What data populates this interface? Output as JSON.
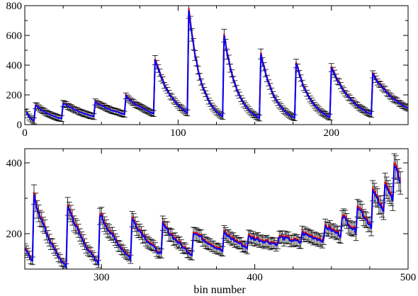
{
  "chart_data": [
    {
      "type": "line",
      "xlabel": "",
      "ylabel": "",
      "xlim": [
        0,
        250
      ],
      "ylim": [
        0,
        800
      ],
      "xticks": [
        0,
        100,
        200
      ],
      "yticks": [
        0,
        200,
        400,
        600,
        800
      ],
      "grid": false,
      "legend": "none",
      "series_colors": {
        "data": "#000000",
        "model_red": "#e00000",
        "model_blue": "#0000ff"
      },
      "cycles": [
        {
          "x0": 1,
          "x1": 6,
          "peak": 85,
          "end": 25
        },
        {
          "x0": 7,
          "x1": 24,
          "peak": 130,
          "end": 40
        },
        {
          "x0": 25,
          "x1": 45,
          "peak": 145,
          "end": 55
        },
        {
          "x0": 46,
          "x1": 65,
          "peak": 150,
          "end": 70
        },
        {
          "x0": 66,
          "x1": 84,
          "peak": 190,
          "end": 75
        },
        {
          "x0": 85,
          "x1": 106,
          "peak": 440,
          "end": 80
        },
        {
          "x0": 107,
          "x1": 129,
          "peak": 760,
          "end": 55
        },
        {
          "x0": 130,
          "x1": 153,
          "peak": 610,
          "end": 45
        },
        {
          "x0": 154,
          "x1": 176,
          "peak": 480,
          "end": 45
        },
        {
          "x0": 177,
          "x1": 199,
          "peak": 410,
          "end": 50
        },
        {
          "x0": 200,
          "x1": 226,
          "peak": 390,
          "end": 70
        },
        {
          "x0": 227,
          "x1": 250,
          "peak": 340,
          "end": 110
        }
      ]
    },
    {
      "type": "line",
      "xlabel": "bin number",
      "ylabel": "",
      "xlim": [
        250,
        500
      ],
      "ylim": [
        100,
        440
      ],
      "xticks": [
        300,
        400,
        500
      ],
      "yticks": [
        200,
        400
      ],
      "grid": false,
      "legend": "none",
      "cycles": [
        {
          "x0": 250,
          "x1": 255,
          "peak": 160,
          "end": 120
        },
        {
          "x0": 256,
          "x1": 277,
          "peak": 305,
          "end": 105
        },
        {
          "x0": 278,
          "x1": 298,
          "peak": 280,
          "end": 115
        },
        {
          "x0": 299,
          "x1": 319,
          "peak": 255,
          "end": 130
        },
        {
          "x0": 320,
          "x1": 339,
          "peak": 240,
          "end": 140
        },
        {
          "x0": 340,
          "x1": 359,
          "peak": 225,
          "end": 140
        },
        {
          "x0": 360,
          "x1": 379,
          "peak": 205,
          "end": 150
        },
        {
          "x0": 380,
          "x1": 395,
          "peak": 200,
          "end": 160
        },
        {
          "x0": 396,
          "x1": 415,
          "peak": 190,
          "end": 170
        },
        {
          "x0": 416,
          "x1": 430,
          "peak": 190,
          "end": 175
        },
        {
          "x0": 431,
          "x1": 445,
          "peak": 200,
          "end": 180
        },
        {
          "x0": 446,
          "x1": 456,
          "peak": 220,
          "end": 195
        },
        {
          "x0": 457,
          "x1": 466,
          "peak": 250,
          "end": 205
        },
        {
          "x0": 467,
          "x1": 476,
          "peak": 280,
          "end": 220
        },
        {
          "x0": 477,
          "x1": 484,
          "peak": 320,
          "end": 260
        },
        {
          "x0": 485,
          "x1": 490,
          "peak": 350,
          "end": 290
        },
        {
          "x0": 491,
          "x1": 495,
          "peak": 385,
          "end": 350
        }
      ]
    }
  ]
}
